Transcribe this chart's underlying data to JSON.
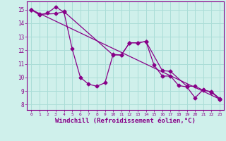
{
  "background_color": "#cff0eb",
  "grid_color": "#aaddd7",
  "line_color": "#880088",
  "xlabel": "Windchill (Refroidissement éolien,°C)",
  "xlabel_fontsize": 6.5,
  "ylabel_values": [
    8,
    9,
    10,
    11,
    12,
    13,
    14,
    15
  ],
  "xlim": [
    -0.5,
    23.5
  ],
  "ylim": [
    7.6,
    15.6
  ],
  "xtick_labels": [
    "0",
    "1",
    "2",
    "3",
    "4",
    "5",
    "6",
    "7",
    "8",
    "9",
    "10",
    "11",
    "12",
    "13",
    "14",
    "15",
    "16",
    "17",
    "18",
    "19",
    "20",
    "21",
    "22",
    "23"
  ],
  "series1_x": [
    0,
    1,
    2,
    3,
    4,
    5,
    6,
    7,
    8,
    9,
    10,
    11,
    12,
    13,
    14,
    15,
    16,
    17,
    18,
    19,
    20,
    21,
    22,
    23
  ],
  "series1_y": [
    15.0,
    14.6,
    14.75,
    15.2,
    14.8,
    12.1,
    10.0,
    9.5,
    9.35,
    9.6,
    11.7,
    11.65,
    12.55,
    12.55,
    12.65,
    10.9,
    10.1,
    10.1,
    9.4,
    9.3,
    8.5,
    9.1,
    8.9,
    8.4
  ],
  "series2_x": [
    0,
    1,
    3,
    4,
    10,
    11,
    12,
    13,
    14,
    16,
    17,
    19,
    20,
    21,
    22,
    23
  ],
  "series2_y": [
    15.0,
    14.65,
    14.7,
    14.85,
    11.65,
    11.65,
    12.55,
    12.55,
    12.65,
    10.5,
    10.45,
    9.35,
    9.35,
    9.05,
    8.95,
    8.45
  ],
  "series3_x": [
    0,
    23
  ],
  "series3_y": [
    15.0,
    8.4
  ]
}
